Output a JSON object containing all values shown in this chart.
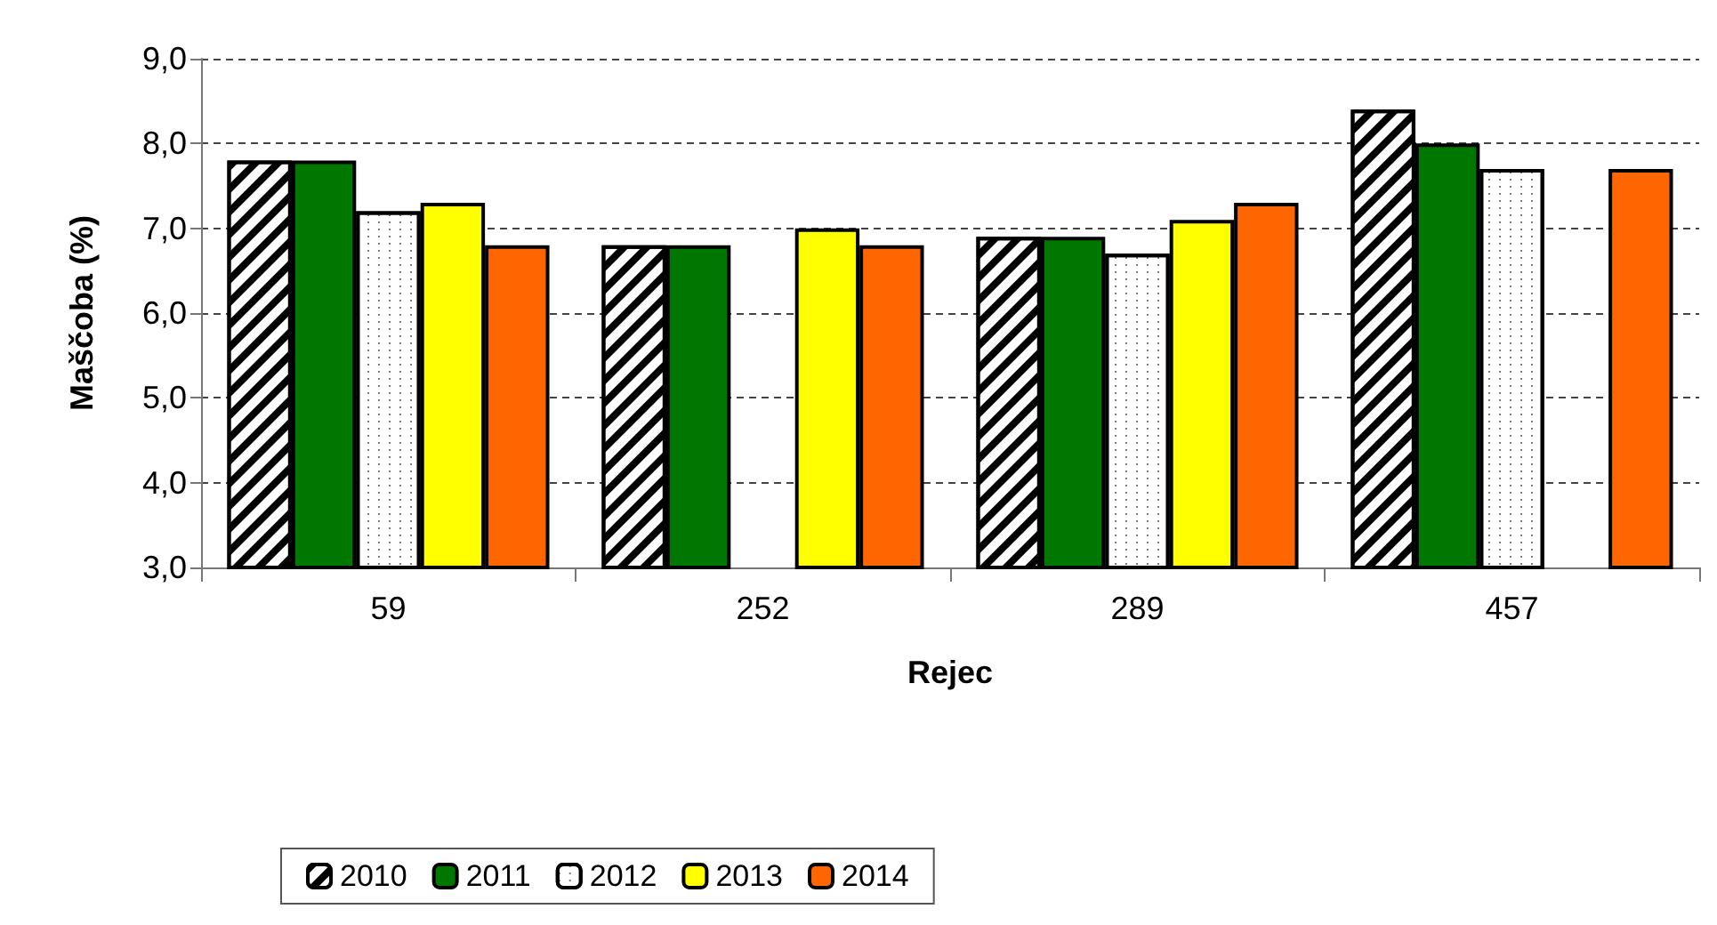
{
  "chart_data": {
    "type": "bar",
    "xlabel": "Rejec",
    "ylabel": "Maščoba (%)",
    "categories": [
      "59",
      "252",
      "289",
      "457"
    ],
    "series": [
      {
        "name": "2010",
        "color": "#000000",
        "values": [
          7.8,
          6.8,
          6.9,
          8.4
        ]
      },
      {
        "name": "2011",
        "color": "#007800",
        "values": [
          7.8,
          6.8,
          6.9,
          8.0
        ]
      },
      {
        "name": "2012",
        "color": "#ffffff",
        "values": [
          7.2,
          null,
          6.7,
          7.7
        ]
      },
      {
        "name": "2013",
        "color": "#ffff00",
        "values": [
          7.3,
          7.0,
          7.1,
          null
        ]
      },
      {
        "name": "2014",
        "color": "#ff6600",
        "values": [
          6.8,
          6.8,
          7.3,
          7.7
        ]
      }
    ],
    "ylim": [
      3,
      9
    ],
    "yticks": [
      {
        "value": 3,
        "label": "3,0"
      },
      {
        "value": 4,
        "label": "4,0"
      },
      {
        "value": 5,
        "label": "5,0"
      },
      {
        "value": 6,
        "label": "6,0"
      },
      {
        "value": 7,
        "label": "7,0"
      },
      {
        "value": 8,
        "label": "8,0"
      },
      {
        "value": 9,
        "label": "9,0"
      }
    ],
    "grid": "y",
    "legend": "bottom"
  }
}
